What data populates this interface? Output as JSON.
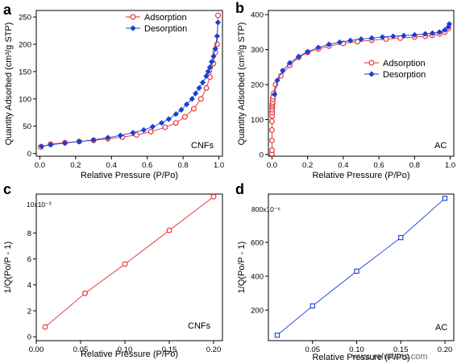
{
  "watermark": "www.refrobots.com",
  "chart_data": [
    {
      "panel": "a",
      "type": "line",
      "xlabel": "Relative Pressure (P/Po)",
      "ylabel": "Quantity Adsorbed (cm³/g STP)",
      "xlim": [
        -0.02,
        1.02
      ],
      "ylim": [
        -5,
        262
      ],
      "xticks": [
        0.0,
        0.2,
        0.4,
        0.6,
        0.8,
        1.0
      ],
      "xtick_labels": [
        "0.0",
        "0.2",
        "0.4",
        "0.6",
        "0.8",
        "1.0"
      ],
      "yticks": [
        0,
        50,
        100,
        150,
        200,
        250
      ],
      "ytick_labels": [
        "0",
        "50",
        "100",
        "150",
        "200",
        "250"
      ],
      "annotation": "CNFs",
      "legend_position": "top-right",
      "series": [
        {
          "name": "Adsorption",
          "color": "#e8282a",
          "marker": "open-circle",
          "x": [
            0.005,
            0.06,
            0.14,
            0.22,
            0.3,
            0.38,
            0.46,
            0.54,
            0.62,
            0.7,
            0.76,
            0.81,
            0.86,
            0.9,
            0.93,
            0.95,
            0.97,
            0.98,
            0.99,
            0.995
          ],
          "y": [
            12,
            17,
            20,
            22,
            24,
            27,
            30,
            34,
            40,
            48,
            56,
            67,
            82,
            100,
            120,
            140,
            165,
            185,
            200,
            253
          ]
        },
        {
          "name": "Desorption",
          "color": "#1a3fd4",
          "marker": "filled-diamond",
          "x": [
            0.995,
            0.99,
            0.98,
            0.97,
            0.96,
            0.95,
            0.94,
            0.93,
            0.91,
            0.89,
            0.87,
            0.85,
            0.82,
            0.79,
            0.76,
            0.72,
            0.68,
            0.63,
            0.58,
            0.52,
            0.45,
            0.38,
            0.3,
            0.22,
            0.14,
            0.06,
            0.01
          ],
          "y": [
            240,
            215,
            192,
            178,
            168,
            158,
            150,
            142,
            130,
            120,
            110,
            100,
            90,
            80,
            72,
            63,
            56,
            49,
            43,
            38,
            33,
            29,
            25,
            22,
            19,
            16,
            13
          ]
        }
      ]
    },
    {
      "panel": "b",
      "type": "line",
      "xlabel": "Relative Pressure (P/Po)",
      "ylabel": "Quantity Adsorbed (cm³/g STP)",
      "xlim": [
        -0.02,
        1.02
      ],
      "ylim": [
        -5,
        412
      ],
      "xticks": [
        0.0,
        0.2,
        0.4,
        0.6,
        0.8,
        1.0
      ],
      "xtick_labels": [
        "0.0",
        "0.2",
        "0.4",
        "0.6",
        "0.8",
        "1.0"
      ],
      "yticks": [
        0,
        100,
        200,
        300,
        400
      ],
      "ytick_labels": [
        "0",
        "100",
        "200",
        "300",
        "400"
      ],
      "annotation": "AC",
      "legend_position": "center-right",
      "series": [
        {
          "name": "Adsorption",
          "color": "#e8282a",
          "marker": "open-circle",
          "x": [
            0.0,
            0.0,
            0.0,
            0.0,
            0.0,
            0.001,
            0.001,
            0.001,
            0.002,
            0.002,
            0.003,
            0.004,
            0.005,
            0.007,
            0.01,
            0.02,
            0.05,
            0.1,
            0.15,
            0.2,
            0.26,
            0.32,
            0.4,
            0.48,
            0.56,
            0.64,
            0.72,
            0.8,
            0.86,
            0.9,
            0.94,
            0.97,
            0.99
          ],
          "y": [
            2,
            12,
            40,
            70,
            95,
            110,
            120,
            128,
            135,
            140,
            145,
            150,
            158,
            165,
            175,
            200,
            225,
            255,
            278,
            292,
            302,
            310,
            318,
            323,
            327,
            330,
            333,
            336,
            338,
            341,
            345,
            350,
            360
          ]
        },
        {
          "name": "Desorption",
          "color": "#1a3fd4",
          "marker": "filled-diamond",
          "x": [
            0.995,
            0.99,
            0.97,
            0.94,
            0.9,
            0.86,
            0.8,
            0.74,
            0.68,
            0.62,
            0.56,
            0.5,
            0.44,
            0.38,
            0.32,
            0.26,
            0.2,
            0.15,
            0.1,
            0.06,
            0.03,
            0.015
          ],
          "y": [
            373,
            365,
            356,
            350,
            347,
            345,
            342,
            340,
            338,
            336,
            333,
            330,
            326,
            321,
            315,
            306,
            294,
            280,
            262,
            240,
            212,
            172
          ]
        }
      ]
    },
    {
      "panel": "c",
      "type": "line",
      "xlabel": "Relative Pressure (P/Po)",
      "ylabel": "1/Q(Po/P - 1)",
      "y_multiplier": "10x10⁻³",
      "xlim": [
        0.0,
        0.21
      ],
      "ylim": [
        -0.3,
        11
      ],
      "xticks": [
        0.0,
        0.05,
        0.1,
        0.15,
        0.2
      ],
      "xtick_labels": [
        "0.00",
        "0.05",
        "0.10",
        "0.15",
        "0.20"
      ],
      "yticks": [
        0,
        2,
        4,
        6,
        8
      ],
      "ytick_labels": [
        "0",
        "2",
        "4",
        "6",
        "8"
      ],
      "annotation": "CNFs",
      "series": [
        {
          "color": "#e8282a",
          "marker": "open-circle",
          "x": [
            0.01,
            0.055,
            0.1,
            0.15,
            0.2
          ],
          "y": [
            0.75,
            3.35,
            5.6,
            8.2,
            10.8
          ]
        }
      ]
    },
    {
      "panel": "d",
      "type": "line",
      "xlabel": "Relative Pressure (P/Po)",
      "ylabel": "1/Q(Po/P - 1)",
      "y_multiplier": "800x10⁻⁶",
      "xlim": [
        0.0,
        0.21
      ],
      "ylim": [
        20,
        885
      ],
      "xticks": [
        0.05,
        0.1,
        0.15,
        0.2
      ],
      "xtick_labels": [
        "0.05",
        "0.10",
        "0.15",
        "0.20"
      ],
      "yticks": [
        200,
        400,
        600
      ],
      "ytick_labels": [
        "200",
        "400",
        "600"
      ],
      "annotation": "AC",
      "series": [
        {
          "color": "#1a3fd4",
          "marker": "open-square",
          "x": [
            0.01,
            0.05,
            0.1,
            0.15,
            0.2
          ],
          "y": [
            52,
            225,
            430,
            628,
            860
          ]
        }
      ]
    }
  ]
}
